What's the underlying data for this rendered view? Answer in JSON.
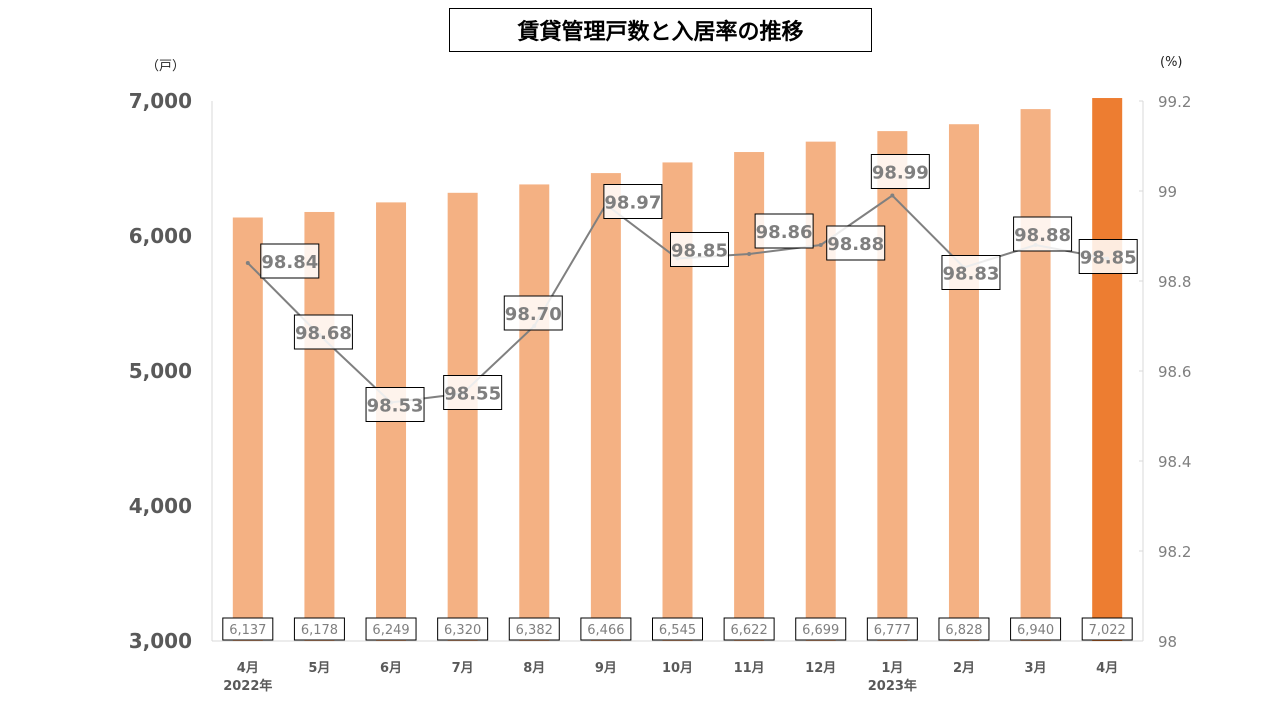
{
  "chart_data": {
    "type": "bar+line",
    "title": "賃貸管理戸数と入居率の推移",
    "ylabel": "（戸）",
    "y2label": "(%)",
    "ylim": [
      3000,
      7000
    ],
    "y2lim": [
      98,
      99.2
    ],
    "yticks": [
      "3,000",
      "4,000",
      "5,000",
      "6,000",
      "7,000"
    ],
    "y2ticks": [
      "98",
      "98.2",
      "98.4",
      "98.6",
      "98.8",
      "99",
      "99.2"
    ],
    "categories": [
      "4月",
      "5月",
      "6月",
      "7月",
      "8月",
      "9月",
      "10月",
      "11月",
      "12月",
      "1月",
      "2月",
      "3月",
      "4月"
    ],
    "year_labels": {
      "0": "2022年",
      "9": "2023年"
    },
    "series": [
      {
        "name": "賃貸管理戸数",
        "type": "bar",
        "values": [
          6137,
          6178,
          6249,
          6320,
          6382,
          6466,
          6545,
          6622,
          6699,
          6777,
          6828,
          6940,
          7022
        ],
        "labels": [
          "6,137",
          "6,178",
          "6,249",
          "6,320",
          "6,382",
          "6,466",
          "6,545",
          "6,622",
          "6,699",
          "6,777",
          "6,828",
          "6,940",
          "7,022"
        ]
      },
      {
        "name": "入居率",
        "type": "line",
        "values": [
          98.84,
          98.68,
          98.53,
          98.55,
          98.7,
          98.97,
          98.85,
          98.86,
          98.88,
          98.99,
          98.83,
          98.88,
          98.85
        ],
        "labels": [
          "98.84",
          "98.68",
          "98.53",
          "98.55",
          "98.70",
          "98.97",
          "98.85",
          "98.86",
          "98.88",
          "98.99",
          "98.83",
          "98.88",
          "98.85"
        ]
      }
    ],
    "colors": {
      "bar": "#F4B183",
      "bar_highlight": "#ED7D31",
      "line": "#808080",
      "label_text": "#7F7F7F"
    }
  }
}
